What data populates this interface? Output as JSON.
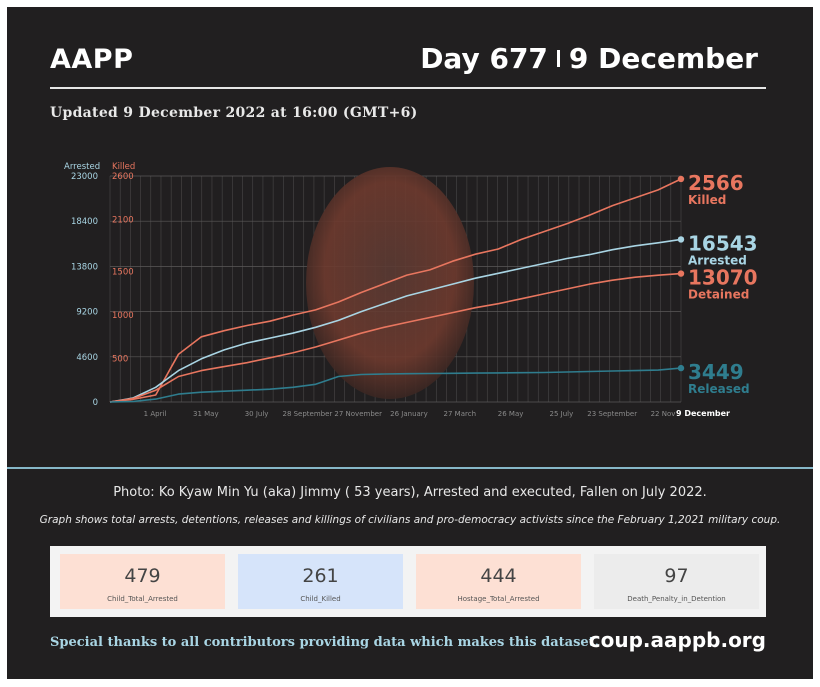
{
  "header": {
    "org": "AAPP",
    "day": "Day 677",
    "date": "9 December"
  },
  "updated": "Updated 9 December 2022 at 16:00 (GMT+6)",
  "colors": {
    "background": "#211f20",
    "arrested": "#a9d5e4",
    "killed": "#e8765f",
    "detained": "#e8765f",
    "released": "#2f7d8e",
    "cards": [
      "#fde0d4",
      "#d6e4fa",
      "#fde0d4",
      "#ececec"
    ]
  },
  "chart_data": {
    "type": "line",
    "left_axis": {
      "title": "Arrested",
      "ticks": [
        "23000",
        "18400",
        "13800",
        "9200",
        "4600",
        "0"
      ],
      "range": [
        0,
        23000
      ]
    },
    "right_axis": {
      "title": "Killed",
      "ticks": [
        "2600",
        "2100",
        "1500",
        "1000",
        "500"
      ],
      "range": [
        0,
        2600
      ]
    },
    "x_ticks": [
      "1 April",
      "31 May",
      "30 July",
      "28 September",
      "27 November",
      "26 January",
      "27 March",
      "26 May",
      "25 July",
      "23 September",
      "22 Nov"
    ],
    "x_end_label": "9 December",
    "grid": true,
    "series": [
      {
        "name": "Killed",
        "axis": "right",
        "final": "2566",
        "values": [
          0,
          30,
          80,
          550,
          750,
          820,
          880,
          930,
          1000,
          1060,
          1150,
          1260,
          1360,
          1460,
          1520,
          1620,
          1700,
          1760,
          1870,
          1960,
          2050,
          2150,
          2260,
          2350,
          2440,
          2566
        ]
      },
      {
        "name": "Arrested",
        "axis": "left",
        "final": "16543",
        "values": [
          0,
          400,
          1500,
          3200,
          4400,
          5300,
          6000,
          6500,
          7000,
          7600,
          8300,
          9200,
          10000,
          10800,
          11400,
          12000,
          12600,
          13100,
          13600,
          14100,
          14600,
          15000,
          15500,
          15900,
          16200,
          16543
        ]
      },
      {
        "name": "Detained",
        "axis": "left",
        "final": "13070",
        "values": [
          0,
          350,
          1200,
          2600,
          3200,
          3600,
          4000,
          4500,
          5000,
          5600,
          6300,
          7000,
          7600,
          8100,
          8600,
          9100,
          9600,
          10000,
          10500,
          11000,
          11500,
          12000,
          12400,
          12700,
          12900,
          13070
        ]
      },
      {
        "name": "Released",
        "axis": "left",
        "final": "3449",
        "values": [
          0,
          50,
          300,
          800,
          1000,
          1100,
          1200,
          1300,
          1500,
          1800,
          2600,
          2800,
          2850,
          2880,
          2900,
          2920,
          2940,
          2960,
          2980,
          3000,
          3050,
          3100,
          3150,
          3200,
          3250,
          3449
        ]
      }
    ]
  },
  "caption": "Photo: Ko Kyaw Min Yu (aka) Jimmy ( 53 years), Arrested and executed, Fallen on July 2022.",
  "note": "Graph shows total arrests, detentions, releases and killings of civilians and pro-democracy activists since the February 1,2021 military coup.",
  "cards": [
    {
      "value": "479",
      "label": "Child_Total_Arrested"
    },
    {
      "value": "261",
      "label": "Child_Killed"
    },
    {
      "value": "444",
      "label": "Hostage_Total_Arrested"
    },
    {
      "value": "97",
      "label": "Death_Penalty_in_Detention"
    }
  ],
  "footer": {
    "thanks": "Special thanks to all contributors providing data which makes this dataset.",
    "site": "coup.aappb.org"
  }
}
